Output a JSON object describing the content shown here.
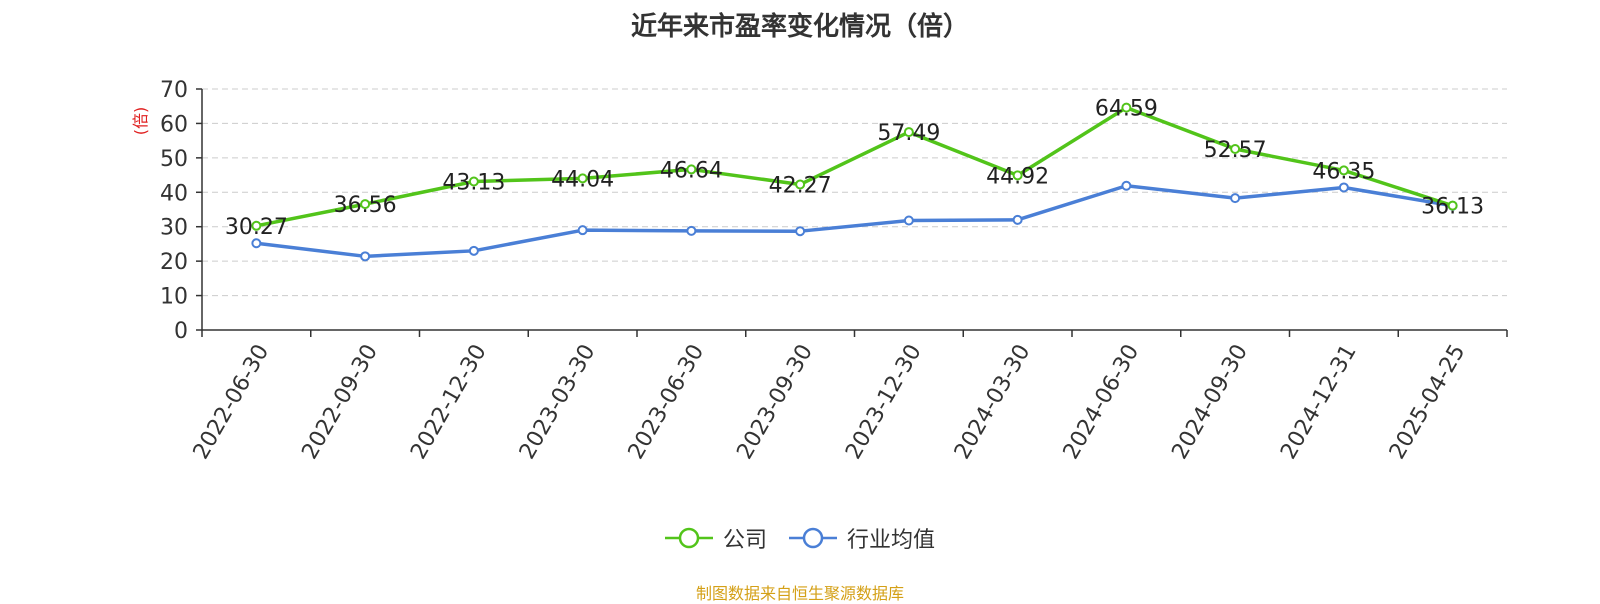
{
  "chart_data": {
    "type": "line",
    "title": "近年来市盈率变化情况（倍）",
    "ylabel": "(倍)",
    "xlabel": "",
    "ylim": [
      0,
      70
    ],
    "yticks": [
      0,
      10,
      20,
      30,
      40,
      50,
      60,
      70
    ],
    "grid": true,
    "legend_position": "bottom",
    "categories": [
      "2022-06-30",
      "2022-09-30",
      "2022-12-30",
      "2023-03-30",
      "2023-06-30",
      "2023-09-30",
      "2023-12-30",
      "2024-03-30",
      "2024-06-30",
      "2024-09-30",
      "2024-12-31",
      "2025-04-25"
    ],
    "series": [
      {
        "name": "公司",
        "color": "#52c41a",
        "values": [
          30.27,
          36.56,
          43.13,
          44.04,
          46.64,
          42.27,
          57.49,
          44.92,
          64.59,
          52.57,
          46.35,
          36.13
        ],
        "labels_shown": true
      },
      {
        "name": "行业均值",
        "color": "#4a7fd6",
        "values": [
          25.2,
          21.4,
          23.0,
          29.0,
          28.8,
          28.7,
          31.8,
          32.0,
          41.9,
          38.3,
          41.4,
          36.1
        ],
        "labels_shown": false
      }
    ],
    "ylabel_color": "#e02020"
  },
  "footer": {
    "source": "制图数据来自恒生聚源数据库"
  }
}
